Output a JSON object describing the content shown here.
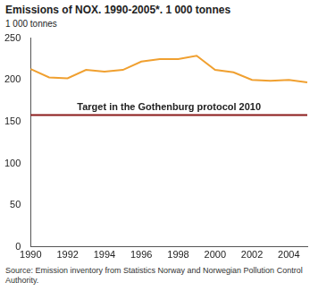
{
  "chart_data": {
    "type": "line",
    "title": "Emissions of NOX. 1990-2005*. 1 000 tonnes",
    "y_label": "1 000 tonnes",
    "categories": [
      "1990",
      null,
      "1992",
      null,
      "1994",
      null,
      "1996",
      null,
      "1998",
      null,
      "2000",
      null,
      "2002",
      null,
      "2004",
      null
    ],
    "values": [
      213,
      203,
      202,
      212,
      210,
      212,
      222,
      225,
      225,
      229,
      212,
      209,
      200,
      199,
      200,
      197
    ],
    "color": "#f0a030",
    "ylim": [
      0,
      250
    ],
    "yticks": [
      0,
      50,
      100,
      150,
      200,
      250
    ],
    "grid": false,
    "annotations": [
      {
        "text": "Target in the Gothenburg protocol 2010",
        "y": 158,
        "color": "#8b1a1a"
      }
    ],
    "source": "Source: Emission inventory from Statistics Norway and Norwegian Pollution Control Authority."
  }
}
